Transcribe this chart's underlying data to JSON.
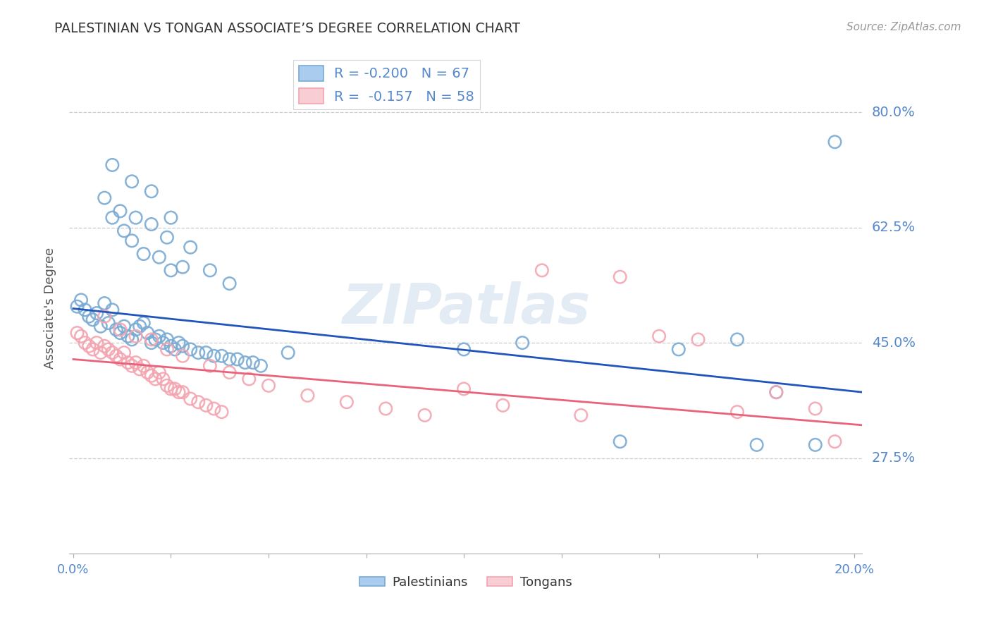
{
  "title": "PALESTINIAN VS TONGAN ASSOCIATE’S DEGREE CORRELATION CHART",
  "source": "Source: ZipAtlas.com",
  "ylabel": "Associate's Degree",
  "ytick_labels": [
    "80.0%",
    "62.5%",
    "45.0%",
    "27.5%"
  ],
  "ytick_values": [
    0.8,
    0.625,
    0.45,
    0.275
  ],
  "ylim": [
    0.13,
    0.875
  ],
  "xlim": [
    -0.001,
    0.202
  ],
  "legend_blue_r": "-0.200",
  "legend_blue_n": "67",
  "legend_pink_r": "-0.157",
  "legend_pink_n": "58",
  "blue_color": "#7aaad4",
  "pink_color": "#f4a4b0",
  "trend_blue": "#2255bb",
  "trend_pink": "#e8637a",
  "watermark": "ZIPatlas",
  "blue_scatter_x": [
    0.001,
    0.002,
    0.003,
    0.004,
    0.005,
    0.006,
    0.007,
    0.008,
    0.009,
    0.01,
    0.011,
    0.012,
    0.013,
    0.014,
    0.015,
    0.016,
    0.017,
    0.018,
    0.019,
    0.02,
    0.021,
    0.022,
    0.023,
    0.024,
    0.025,
    0.026,
    0.027,
    0.028,
    0.03,
    0.032,
    0.034,
    0.036,
    0.038,
    0.04,
    0.042,
    0.044,
    0.046,
    0.048,
    0.01,
    0.013,
    0.015,
    0.018,
    0.022,
    0.025,
    0.028,
    0.008,
    0.012,
    0.016,
    0.02,
    0.024,
    0.01,
    0.015,
    0.02,
    0.025,
    0.03,
    0.035,
    0.04,
    0.055,
    0.1,
    0.115,
    0.14,
    0.155,
    0.17,
    0.175,
    0.18,
    0.19,
    0.195
  ],
  "blue_scatter_y": [
    0.505,
    0.515,
    0.5,
    0.49,
    0.485,
    0.495,
    0.475,
    0.51,
    0.48,
    0.5,
    0.47,
    0.465,
    0.475,
    0.46,
    0.455,
    0.47,
    0.475,
    0.48,
    0.465,
    0.45,
    0.455,
    0.46,
    0.45,
    0.455,
    0.445,
    0.44,
    0.45,
    0.445,
    0.44,
    0.435,
    0.435,
    0.43,
    0.43,
    0.425,
    0.425,
    0.42,
    0.42,
    0.415,
    0.64,
    0.62,
    0.605,
    0.585,
    0.58,
    0.56,
    0.565,
    0.67,
    0.65,
    0.64,
    0.63,
    0.61,
    0.72,
    0.695,
    0.68,
    0.64,
    0.595,
    0.56,
    0.54,
    0.435,
    0.44,
    0.45,
    0.3,
    0.44,
    0.455,
    0.295,
    0.375,
    0.295,
    0.755
  ],
  "pink_scatter_x": [
    0.001,
    0.002,
    0.003,
    0.004,
    0.005,
    0.006,
    0.007,
    0.008,
    0.009,
    0.01,
    0.011,
    0.012,
    0.013,
    0.014,
    0.015,
    0.016,
    0.017,
    0.018,
    0.019,
    0.02,
    0.021,
    0.022,
    0.023,
    0.024,
    0.025,
    0.026,
    0.027,
    0.028,
    0.03,
    0.032,
    0.034,
    0.036,
    0.038,
    0.008,
    0.012,
    0.016,
    0.02,
    0.024,
    0.028,
    0.035,
    0.04,
    0.045,
    0.05,
    0.06,
    0.07,
    0.08,
    0.09,
    0.1,
    0.11,
    0.13,
    0.15,
    0.16,
    0.17,
    0.18,
    0.19,
    0.195,
    0.12,
    0.14
  ],
  "pink_scatter_y": [
    0.465,
    0.46,
    0.45,
    0.445,
    0.44,
    0.45,
    0.435,
    0.445,
    0.44,
    0.435,
    0.43,
    0.425,
    0.435,
    0.42,
    0.415,
    0.42,
    0.41,
    0.415,
    0.405,
    0.4,
    0.395,
    0.405,
    0.395,
    0.385,
    0.38,
    0.38,
    0.375,
    0.375,
    0.365,
    0.36,
    0.355,
    0.35,
    0.345,
    0.49,
    0.47,
    0.46,
    0.455,
    0.44,
    0.43,
    0.415,
    0.405,
    0.395,
    0.385,
    0.37,
    0.36,
    0.35,
    0.34,
    0.38,
    0.355,
    0.34,
    0.46,
    0.455,
    0.345,
    0.375,
    0.35,
    0.3,
    0.56,
    0.55
  ],
  "blue_trend_x": [
    0.0,
    0.202
  ],
  "blue_trend_y": [
    0.502,
    0.375
  ],
  "pink_trend_x": [
    0.0,
    0.202
  ],
  "pink_trend_y": [
    0.425,
    0.325
  ]
}
